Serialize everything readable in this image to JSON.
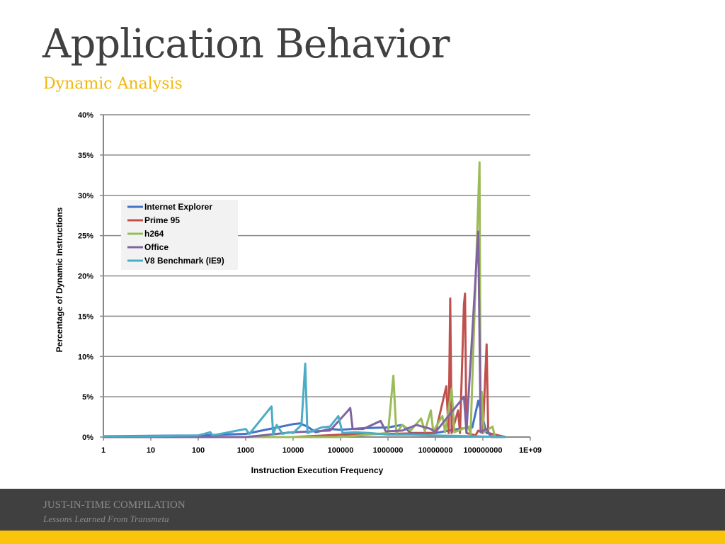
{
  "slide": {
    "title": "Application Behavior",
    "subtitle": "Dynamic Analysis"
  },
  "footer": {
    "line1": "JUST-IN-TIME COMPILATION",
    "line2": "Lessons Learned From Transmeta"
  },
  "colors": {
    "title": "#404040",
    "subtitle": "#f2b705",
    "footer_band": "#404040",
    "accent_bar": "#f9c40b"
  },
  "chart_data": {
    "type": "line",
    "title": "",
    "xlabel": "Instruction Execution Frequency",
    "ylabel": "Percentage of Dynamic Instructions",
    "x_scale": "log",
    "xlim": [
      1,
      1000000000
    ],
    "ylim": [
      0,
      40
    ],
    "x_tick_labels": [
      "1",
      "10",
      "100",
      "1000",
      "10000",
      "100000",
      "1000000",
      "10000000",
      "100000000",
      "1E+09"
    ],
    "y_tick_labels": [
      "0%",
      "5%",
      "10%",
      "15%",
      "20%",
      "25%",
      "30%",
      "35%",
      "40%"
    ],
    "grid": "horizontal",
    "legend_position": "left",
    "series": [
      {
        "name": "Internet Explorer",
        "color": "#4472c4",
        "points": [
          [
            1,
            0.1
          ],
          [
            100,
            0.2
          ],
          [
            1000,
            0.4
          ],
          [
            10000,
            1.6
          ],
          [
            14000,
            1.7
          ],
          [
            20000,
            1.3
          ],
          [
            30000,
            0.6
          ],
          [
            60000,
            1.0
          ],
          [
            100000,
            0.9
          ],
          [
            300000,
            1.1
          ],
          [
            1000000,
            1.2
          ],
          [
            2000000,
            1.5
          ],
          [
            3000000,
            0.5
          ],
          [
            10000000,
            0.5
          ],
          [
            30000000,
            1.0
          ],
          [
            60000000,
            1.2
          ],
          [
            80000000,
            4.5
          ],
          [
            120000000,
            0.5
          ],
          [
            200000000,
            0.2
          ],
          [
            300000000,
            0
          ]
        ]
      },
      {
        "name": "Prime 95",
        "color": "#c0504d",
        "points": [
          [
            1,
            0
          ],
          [
            10000,
            0
          ],
          [
            100000,
            0.3
          ],
          [
            1000000,
            0.4
          ],
          [
            10000000,
            0.5
          ],
          [
            17000000,
            6.3
          ],
          [
            19000000,
            0.5
          ],
          [
            20500000,
            17.2
          ],
          [
            22000000,
            0.5
          ],
          [
            30000000,
            3.3
          ],
          [
            33000000,
            0.5
          ],
          [
            40000000,
            16.5
          ],
          [
            42000000,
            17.8
          ],
          [
            45000000,
            0.5
          ],
          [
            70000000,
            0.2
          ],
          [
            80000000,
            0.8
          ],
          [
            100000000,
            0.5
          ],
          [
            120000000,
            11.5
          ],
          [
            130000000,
            0.5
          ],
          [
            300000000,
            0
          ]
        ]
      },
      {
        "name": "h264",
        "color": "#9bbb59",
        "points": [
          [
            1,
            0
          ],
          [
            100000,
            0
          ],
          [
            1000000,
            0.5
          ],
          [
            1300000,
            7.6
          ],
          [
            1500000,
            0.5
          ],
          [
            2000000,
            1.5
          ],
          [
            3000000,
            0.8
          ],
          [
            5000000,
            2.3
          ],
          [
            6000000,
            0.7
          ],
          [
            8000000,
            3.3
          ],
          [
            9000000,
            0.7
          ],
          [
            14000000,
            2.6
          ],
          [
            16000000,
            0.6
          ],
          [
            22000000,
            6.0
          ],
          [
            25000000,
            0.6
          ],
          [
            50000000,
            1.3
          ],
          [
            55000000,
            0.3
          ],
          [
            85000000,
            34.1
          ],
          [
            90000000,
            0.6
          ],
          [
            95000000,
            5.6
          ],
          [
            105000000,
            0.6
          ],
          [
            160000000,
            1.3
          ],
          [
            180000000,
            0
          ],
          [
            300000000,
            0
          ]
        ]
      },
      {
        "name": "Office",
        "color": "#8064a2",
        "points": [
          [
            1,
            0
          ],
          [
            1000,
            0
          ],
          [
            10000,
            0.6
          ],
          [
            60000,
            0.8
          ],
          [
            140000,
            3.2
          ],
          [
            160000,
            3.6
          ],
          [
            180000,
            1.0
          ],
          [
            300000,
            1.0
          ],
          [
            700000,
            2.0
          ],
          [
            900000,
            0.7
          ],
          [
            2000000,
            0.8
          ],
          [
            4000000,
            1.5
          ],
          [
            8000000,
            1.0
          ],
          [
            10000000,
            0.6
          ],
          [
            40000000,
            5.0
          ],
          [
            45000000,
            0.6
          ],
          [
            80000000,
            25.5
          ],
          [
            90000000,
            0.6
          ],
          [
            120000000,
            1.0
          ],
          [
            150000000,
            0
          ],
          [
            300000000,
            0
          ]
        ]
      },
      {
        "name": "V8 Benchmark (IE9)",
        "color": "#4bacc6",
        "points": [
          [
            1,
            0.1
          ],
          [
            10,
            0.1
          ],
          [
            100,
            0.2
          ],
          [
            180,
            0.6
          ],
          [
            200,
            0.2
          ],
          [
            1000,
            1.0
          ],
          [
            1200,
            0.4
          ],
          [
            3500,
            3.8
          ],
          [
            3800,
            0.3
          ],
          [
            4500,
            1.5
          ],
          [
            6000,
            0.4
          ],
          [
            8000,
            0.6
          ],
          [
            10000,
            0.5
          ],
          [
            15000,
            1.5
          ],
          [
            18000,
            9.1
          ],
          [
            20000,
            0.5
          ],
          [
            40000,
            1.2
          ],
          [
            60000,
            1.3
          ],
          [
            90000,
            2.6
          ],
          [
            110000,
            0.5
          ],
          [
            200000,
            0.6
          ],
          [
            400000,
            0.5
          ],
          [
            1000000,
            0.3
          ],
          [
            3000000,
            0.3
          ],
          [
            10000000,
            0.2
          ],
          [
            300000000,
            0
          ]
        ]
      }
    ]
  }
}
